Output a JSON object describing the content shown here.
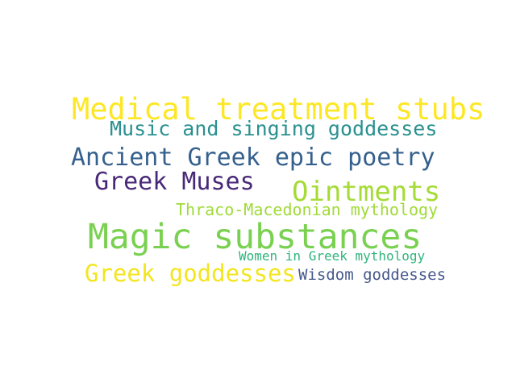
{
  "words": [
    {
      "key": "medical_treatment_stubs",
      "text": "Medical treatment stubs",
      "color": "#fde725"
    },
    {
      "key": "music_singing_goddesses",
      "text": "Music and singing goddesses",
      "color": "#2a9090"
    },
    {
      "key": "ancient_greek_epic_poetry",
      "text": "Ancient Greek epic poetry",
      "color": "#35608d"
    },
    {
      "key": "greek_muses",
      "text": "Greek Muses",
      "color": "#482878"
    },
    {
      "key": "ointments",
      "text": "Ointments",
      "color": "#a5db36"
    },
    {
      "key": "thraco_macedonian_mythology",
      "text": "Thraco-Macedonian mythology",
      "color": "#a0da39"
    },
    {
      "key": "magic_substances",
      "text": "Magic substances",
      "color": "#7ad151"
    },
    {
      "key": "women_in_greek_mythology",
      "text": "Women in Greek mythology",
      "color": "#2fb47c"
    },
    {
      "key": "greek_goddesses",
      "text": "Greek goddesses",
      "color": "#f3e51e"
    },
    {
      "key": "wisdom_goddesses",
      "text": "Wisdom goddesses",
      "color": "#46588b"
    }
  ]
}
